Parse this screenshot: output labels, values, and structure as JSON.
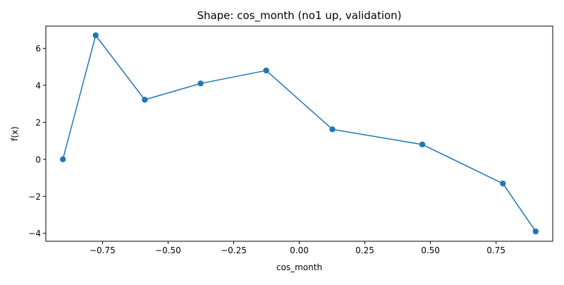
{
  "chart_data": {
    "type": "line",
    "title": "Shape: cos_month (no1 up, validation)",
    "xlabel": "cos_month",
    "ylabel": "f(x)",
    "xlim": [
      -0.966,
      0.966
    ],
    "ylim": [
      -4.43,
      7.2
    ],
    "grid": false,
    "legend": "none",
    "x_ticks": [
      -0.75,
      -0.5,
      -0.25,
      0.0,
      0.25,
      0.5,
      0.75
    ],
    "x_tick_labels": [
      "−0.75",
      "−0.50",
      "−0.25",
      "0.00",
      "0.25",
      "0.50",
      "0.75"
    ],
    "y_ticks": [
      -4,
      -2,
      0,
      2,
      4,
      6
    ],
    "y_tick_labels": [
      "−4",
      "−2",
      "0",
      "2",
      "4",
      "6"
    ],
    "series": [
      {
        "color": "#1f77b4",
        "marker": "circle",
        "x": [
          -0.901,
          -0.776,
          -0.589,
          -0.376,
          -0.126,
          0.126,
          0.469,
          0.776,
          0.901
        ],
        "y": [
          0.0,
          6.7,
          3.22,
          4.1,
          4.8,
          1.62,
          0.8,
          -1.31,
          -3.9
        ]
      }
    ]
  }
}
